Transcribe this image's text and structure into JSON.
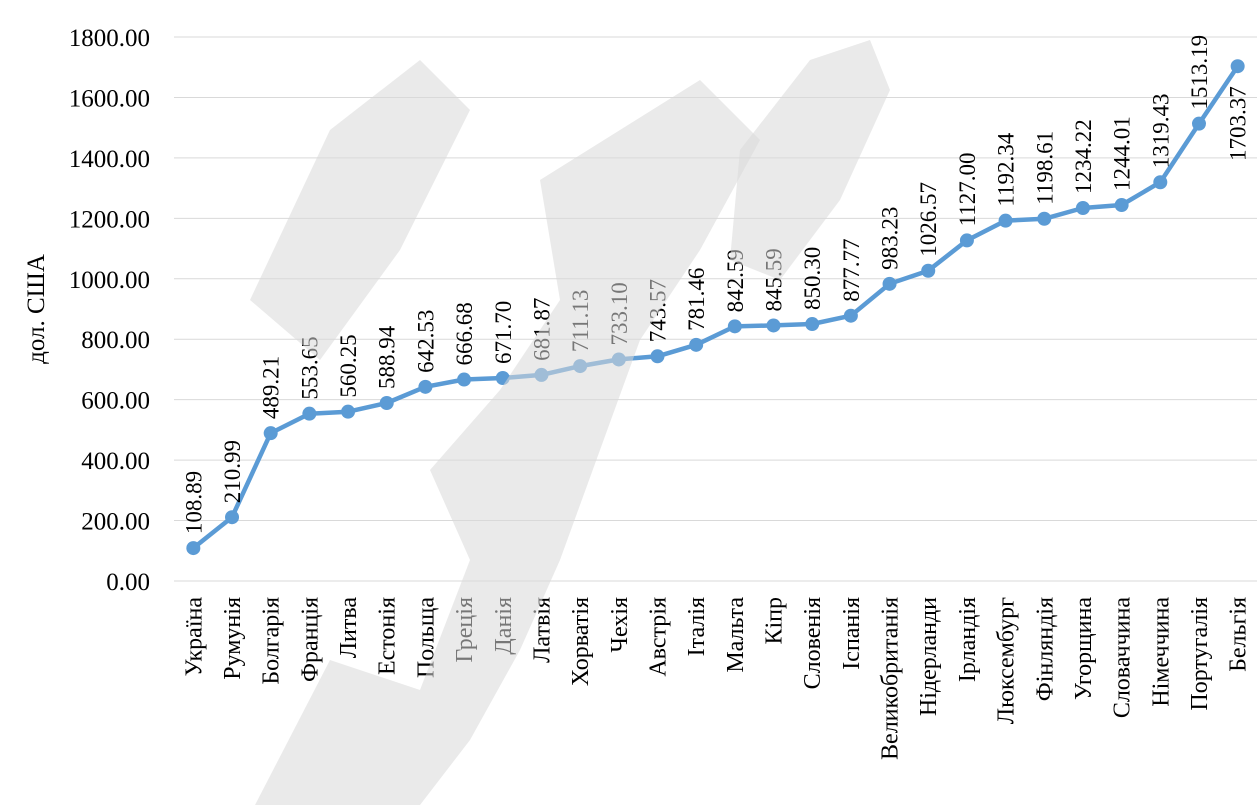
{
  "chart_data": {
    "type": "line",
    "title": "",
    "xlabel": "",
    "ylabel": "дол. США",
    "ylim": [
      0,
      1800
    ],
    "y_ticks": [
      0,
      200,
      400,
      600,
      800,
      1000,
      1200,
      1400,
      1600,
      1800
    ],
    "y_tick_labels": [
      "0.00",
      "200.00",
      "400.00",
      "600.00",
      "800.00",
      "1000.00",
      "1200.00",
      "1400.00",
      "1600.00",
      "1800.00"
    ],
    "grid": true,
    "legend": "none",
    "categories": [
      "Україна",
      "Румунія",
      "Болгарія",
      "Франція",
      "Литва",
      "Естонія",
      "Польща",
      "Греція",
      "Данія",
      "Латвія",
      "Хорватія",
      "Чехія",
      "Австрія",
      "Італія",
      "Мальта",
      "Кіпр",
      "Словенія",
      "Іспанія",
      "Великобританія",
      "Нідерланди",
      "Ірландія",
      "Люксембург",
      "Фінляндія",
      "Угорщина",
      "Словаччина",
      "Німеччина",
      "Португалія",
      "Бельгія"
    ],
    "series": [
      {
        "values": [
          108.89,
          210.99,
          489.21,
          553.65,
          560.25,
          588.94,
          642.53,
          666.68,
          671.7,
          681.87,
          711.13,
          733.1,
          743.57,
          781.46,
          842.59,
          845.59,
          850.3,
          877.77,
          983.23,
          1026.57,
          1127.0,
          1192.34,
          1198.61,
          1234.22,
          1244.01,
          1319.43,
          1513.19,
          1703.37
        ],
        "labels": [
          "108.89",
          "210.99",
          "489.21",
          "553.65",
          "560.25",
          "588.94",
          "642.53",
          "666.68",
          "671.70",
          "681.87",
          "711.13",
          "733.10",
          "743.57",
          "781.46",
          "842.59",
          "845.59",
          "850.30",
          "877.77",
          "983.23",
          "1026.57",
          "1127.00",
          "1192.34",
          "1198.61",
          "1234.22",
          "1244.01",
          "1319.43",
          "1513.19",
          "1703.37"
        ],
        "color": "#5b9bd5"
      }
    ]
  }
}
